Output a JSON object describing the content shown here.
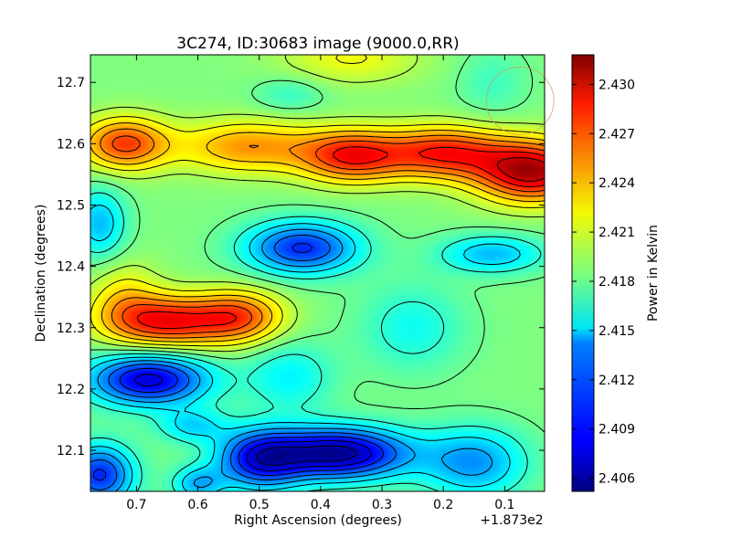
{
  "chart_data": {
    "type": "heatmap",
    "title": "3C274, ID:30683 image (9000.0,RR)",
    "xlabel": "Right Ascension (degrees)",
    "ylabel": "Declination (degrees)",
    "x_offset_label": "+1.873e2",
    "xlim": [
      0.775,
      0.035
    ],
    "ylim": [
      12.033,
      12.745
    ],
    "x_ticks": [
      0.7,
      0.6,
      0.5,
      0.4,
      0.3,
      0.2,
      0.1
    ],
    "x_tick_labels": [
      "0.7",
      "0.6",
      "0.5",
      "0.4",
      "0.3",
      "0.2",
      "0.1"
    ],
    "y_ticks": [
      12.1,
      12.2,
      12.3,
      12.4,
      12.5,
      12.6,
      12.7
    ],
    "y_tick_labels": [
      "12.1",
      "12.2",
      "12.3",
      "12.4",
      "12.5",
      "12.6",
      "12.7"
    ],
    "colorbar": {
      "label": "Power in Kelvin",
      "range": [
        2.4052,
        2.4318
      ],
      "ticks": [
        2.406,
        2.409,
        2.412,
        2.415,
        2.418,
        2.421,
        2.424,
        2.427,
        2.43
      ],
      "tick_labels": [
        "2.406",
        "2.409",
        "2.412",
        "2.415",
        "2.418",
        "2.421",
        "2.424",
        "2.427",
        "2.430"
      ],
      "colormap": "jet"
    },
    "contours": "black contour lines overlaid",
    "beam_circle": {
      "ra": 0.075,
      "dec": 12.67,
      "radius_deg": 0.055,
      "color": "#c8a060"
    },
    "background_level": 2.4185,
    "features": [
      {
        "ra": 0.055,
        "dec": 12.555,
        "value": 2.4305,
        "sigma_ra": 0.065,
        "sigma_dec": 0.035
      },
      {
        "ra": 0.2,
        "dec": 12.585,
        "value": 2.4275,
        "sigma_ra": 0.07,
        "sigma_dec": 0.03
      },
      {
        "ra": 0.35,
        "dec": 12.58,
        "value": 2.4275,
        "sigma_ra": 0.06,
        "sigma_dec": 0.03
      },
      {
        "ra": 0.52,
        "dec": 12.595,
        "value": 2.4245,
        "sigma_ra": 0.08,
        "sigma_dec": 0.03
      },
      {
        "ra": 0.72,
        "dec": 12.6,
        "value": 2.4268,
        "sigma_ra": 0.05,
        "sigma_dec": 0.03
      },
      {
        "ra": 0.65,
        "dec": 12.31,
        "value": 2.4282,
        "sigma_ra": 0.07,
        "sigma_dec": 0.03
      },
      {
        "ra": 0.53,
        "dec": 12.318,
        "value": 2.4255,
        "sigma_ra": 0.05,
        "sigma_dec": 0.03
      },
      {
        "ra": 0.43,
        "dec": 12.43,
        "value": 2.4095,
        "sigma_ra": 0.065,
        "sigma_dec": 0.03
      },
      {
        "ra": 0.12,
        "dec": 12.42,
        "value": 2.4135,
        "sigma_ra": 0.06,
        "sigma_dec": 0.022
      },
      {
        "ra": 0.76,
        "dec": 12.47,
        "value": 2.4135,
        "sigma_ra": 0.03,
        "sigma_dec": 0.04
      },
      {
        "ra": 0.68,
        "dec": 12.215,
        "value": 2.4075,
        "sigma_ra": 0.07,
        "sigma_dec": 0.03
      },
      {
        "ra": 0.37,
        "dec": 12.095,
        "value": 2.4058,
        "sigma_ra": 0.08,
        "sigma_dec": 0.03
      },
      {
        "ra": 0.5,
        "dec": 12.085,
        "value": 2.4095,
        "sigma_ra": 0.05,
        "sigma_dec": 0.035
      },
      {
        "ra": 0.76,
        "dec": 12.06,
        "value": 2.4095,
        "sigma_ra": 0.04,
        "sigma_dec": 0.035
      },
      {
        "ra": 0.15,
        "dec": 12.08,
        "value": 2.4125,
        "sigma_ra": 0.06,
        "sigma_dec": 0.04
      },
      {
        "ra": 0.6,
        "dec": 12.045,
        "value": 2.4135,
        "sigma_ra": 0.03,
        "sigma_dec": 0.02
      },
      {
        "ra": 0.61,
        "dec": 12.14,
        "value": 2.4145,
        "sigma_ra": 0.04,
        "sigma_dec": 0.02
      },
      {
        "ra": 0.45,
        "dec": 12.22,
        "value": 2.415,
        "sigma_ra": 0.05,
        "sigma_dec": 0.04
      },
      {
        "ra": 0.25,
        "dec": 12.3,
        "value": 2.4155,
        "sigma_ra": 0.06,
        "sigma_dec": 0.05
      },
      {
        "ra": 0.35,
        "dec": 12.74,
        "value": 2.4215,
        "sigma_ra": 0.08,
        "sigma_dec": 0.03
      },
      {
        "ra": 0.12,
        "dec": 12.7,
        "value": 2.4168,
        "sigma_ra": 0.04,
        "sigma_dec": 0.04
      },
      {
        "ra": 0.45,
        "dec": 12.68,
        "value": 2.4165,
        "sigma_ra": 0.04,
        "sigma_dec": 0.02
      },
      {
        "ra": 0.72,
        "dec": 12.35,
        "value": 2.4218,
        "sigma_ra": 0.04,
        "sigma_dec": 0.04
      }
    ]
  }
}
